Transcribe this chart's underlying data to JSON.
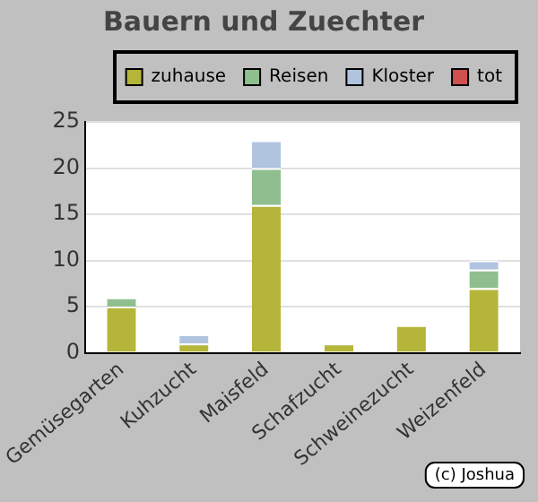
{
  "chart_data": {
    "type": "bar",
    "title": "Bauern und Zuechter",
    "stacked": true,
    "categories": [
      "Gemüsegarten",
      "Kuhzucht",
      "Maisfeld",
      "Schafzucht",
      "Schweinezucht",
      "Weizenfeld"
    ],
    "series": [
      {
        "name": "zuhause",
        "color": "#b5b53a",
        "values": [
          5,
          1,
          16,
          1,
          3,
          7
        ]
      },
      {
        "name": "Reisen",
        "color": "#8fbf8f",
        "values": [
          1,
          0,
          4,
          0,
          0,
          2
        ]
      },
      {
        "name": "Kloster",
        "color": "#b0c4e0",
        "values": [
          0,
          1,
          3,
          0,
          0,
          1
        ]
      },
      {
        "name": "tot",
        "color": "#d05050",
        "values": [
          0,
          0,
          0,
          0,
          0,
          0
        ]
      }
    ],
    "ylim": [
      0,
      25
    ],
    "yticks": [
      0,
      5,
      10,
      15,
      20,
      25
    ],
    "grid": "y",
    "legend": "top",
    "annotations": [
      "(c) Joshua"
    ]
  }
}
